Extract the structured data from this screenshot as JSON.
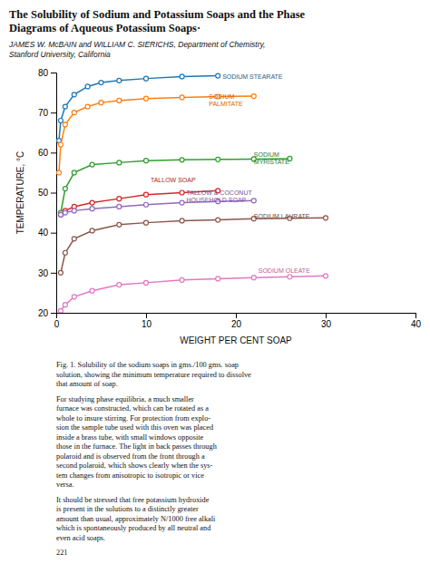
{
  "chart_data": {
    "type": "line",
    "title": "The Solubility of Sodium and Potassium Soaps and the Phase\nDiagrams of Aqueous Potassium Soaps·",
    "subtitle": "JAMES W. McBAIN and WILLIAM C. SIERICHS, Department of Chemistry,\nStanford University, California",
    "xlabel": "WEIGHT PER CENT SOAP",
    "ylabel": "TEMPERATURE, °C",
    "xlim": [
      0,
      40
    ],
    "ylim": [
      20,
      80
    ],
    "xticks": [
      0,
      10,
      20,
      30,
      40
    ],
    "yticks": [
      20,
      30,
      40,
      50,
      60,
      70,
      80
    ],
    "grid": false,
    "marker": "circle",
    "series": [
      {
        "x": [
          0.3,
          0.5,
          1.0,
          2.0,
          3.5,
          5.0,
          7.0,
          10.0,
          14.0,
          18.0
        ],
        "values": [
          63.0,
          68.0,
          71.5,
          74.5,
          76.5,
          77.5,
          78.0,
          78.5,
          79.0,
          79.2
        ]
      },
      {
        "x": [
          0.3,
          0.5,
          1.0,
          2.0,
          3.5,
          5.0,
          7.0,
          10.0,
          14.0,
          18.0,
          22.0
        ],
        "values": [
          55.0,
          62.0,
          67.0,
          70.0,
          71.5,
          72.5,
          73.0,
          73.5,
          73.8,
          74.0,
          74.1
        ]
      },
      {
        "x": [
          0.5,
          1.0,
          2.0,
          4.0,
          7.0,
          10.0,
          14.0,
          18.0,
          22.0,
          26.0
        ],
        "values": [
          45.0,
          51.0,
          55.0,
          57.0,
          57.5,
          58.0,
          58.2,
          58.3,
          58.4,
          58.5
        ]
      },
      {
        "x": [
          0.5,
          1.0,
          2.0,
          4.0,
          7.0,
          10.0,
          14.0,
          18.0
        ],
        "values": [
          44.5,
          45.5,
          46.5,
          47.5,
          48.5,
          49.5,
          50.0,
          50.5
        ]
      },
      {
        "x": [
          0.5,
          1.0,
          2.0,
          4.0,
          7.0,
          10.0,
          14.0,
          18.0,
          22.0
        ],
        "values": [
          44.5,
          45.0,
          45.5,
          46.0,
          46.5,
          47.0,
          47.5,
          47.8,
          48.0
        ]
      },
      {
        "x": [
          0.5,
          1.0,
          2.0,
          4.0,
          7.0,
          10.0,
          14.0,
          18.0,
          22.0,
          26.0,
          30.0
        ],
        "values": [
          30.0,
          35.0,
          38.5,
          40.5,
          42.0,
          42.5,
          43.0,
          43.2,
          43.5,
          43.6,
          43.7
        ]
      },
      {
        "x": [
          0.5,
          1.0,
          2.0,
          4.0,
          7.0,
          10.0,
          14.0,
          18.0,
          22.0,
          26.0,
          30.0
        ],
        "values": [
          20.5,
          22.0,
          24.0,
          25.5,
          27.0,
          27.5,
          28.2,
          28.5,
          28.8,
          29.0,
          29.2
        ]
      }
    ],
    "annotations": [
      {
        "text": "SODIUM STEARATE",
        "x": 18.5,
        "y": 78.5
      },
      {
        "text": "SODIUM\nPALMITATE",
        "x": 17.0,
        "y": 72.5
      },
      {
        "text": "SODIUM\nMYRISTATE",
        "x": 22.0,
        "y": 58.0
      },
      {
        "text": "TALLOW SOAP",
        "x": 10.5,
        "y": 52.5
      },
      {
        "text": "TALLOW & COCONUT\nHOUSEHOLD SOAP",
        "x": 14.5,
        "y": 48.5
      },
      {
        "text": "SODIUM LAURATE",
        "x": 22.0,
        "y": 43.5
      },
      {
        "text": "SODIUM OLEATE",
        "x": 22.5,
        "y": 30.0
      },
      {
        "text": "Fig. 1. Solubility of the sodium soaps in gms./100 gms. soap\nsolution, showing the minimum temperature required to dissolve\nthat amount of soap."
      },
      {
        "text": "For studying phase equilibria, a much smaller\nfurnace was constructed, which can be rotated as a\nwhole to insure stirring.  For protection from explo-\nsion the sample tube used with this oven was placed\ninside a brass tube, with small windows opposite\nthose in the furnace.  The light in back passes through\npolaroid and is observed from the front through a\nsecond polaroid, which shows clearly when the sys-\ntem changes from anisotropic to isotropic or vice\nversa."
      },
      {
        "text": "It should be stressed that free potassium hydroxide\nis present in the solutions to a distinctly greater\namount than usual, approximately N/1000 free alkali\nwhich is spontaneously produced by all neutral and\neven acid soaps."
      },
      {
        "text": "221"
      }
    ]
  }
}
